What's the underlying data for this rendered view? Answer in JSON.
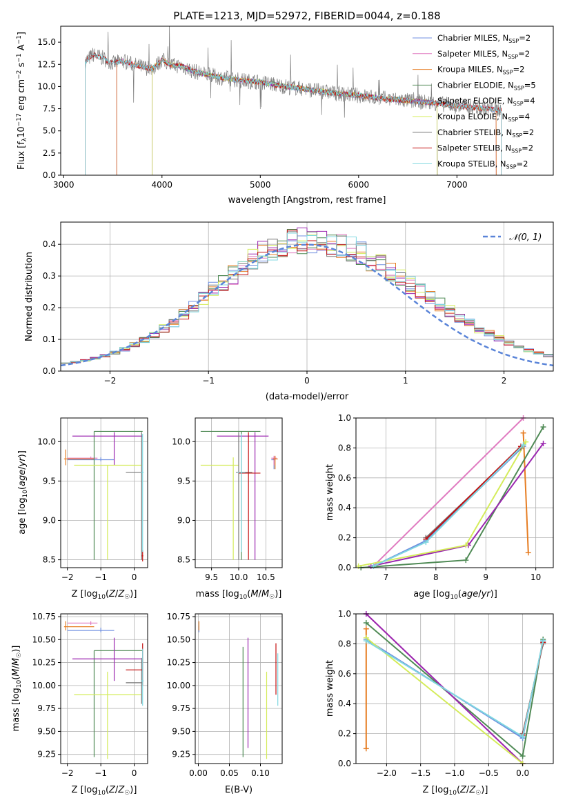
{
  "title": "PLATE=1213, MJD=52972, FIBERID=0044, z=0.188",
  "colors": {
    "chabrier_miles": "#6f8fe0",
    "salpeter_miles": "#e07ac0",
    "kroupa_miles": "#e67d22",
    "chabrier_elodie": "#4f8a55",
    "salpeter_elodie": "#9b27b0",
    "kroupa_elodie": "#d4ec5a",
    "chabrier_stelib": "#777777",
    "salpeter_stelib": "#c41212",
    "kroupa_stelib": "#7fd7e0",
    "normal_curve": "#5a84d8"
  },
  "chart_data": [
    {
      "id": "spectrum",
      "type": "line",
      "xlabel": "wavelength [Angstrom, rest frame]",
      "ylabel": "Flux [f",
      "ylabel_full": "Flux [fλ10⁻¹⁷ erg cm⁻² s⁻¹ A⁻¹]",
      "xlim": [
        2970,
        7980
      ],
      "ylim": [
        0,
        16.8
      ],
      "x_ticks": [
        "3000",
        "4000",
        "5000",
        "6000",
        "7000"
      ],
      "y_ticks": [
        "0.0",
        "2.5",
        "5.0",
        "7.5",
        "10.0",
        "12.5",
        "15.0"
      ],
      "grid": false,
      "legend": "top-right",
      "legend_entries": [
        {
          "label": "Chabrier MILES, N",
          "sub": "SSP",
          "tail": "=2",
          "color_key": "chabrier_miles"
        },
        {
          "label": "Salpeter MILES, N",
          "sub": "SSP",
          "tail": "=2",
          "color_key": "salpeter_miles"
        },
        {
          "label": "Kroupa MILES, N",
          "sub": "SSP",
          "tail": "=2",
          "color_key": "kroupa_miles"
        },
        {
          "label": "Chabrier ELODIE, N",
          "sub": "SSP",
          "tail": "=5",
          "color_key": "chabrier_elodie"
        },
        {
          "label": "Salpeter ELODIE, N",
          "sub": "SSP",
          "tail": "=4",
          "color_key": "salpeter_elodie"
        },
        {
          "label": "Kroupa ELODIE, N",
          "sub": "SSP",
          "tail": "=4",
          "color_key": "kroupa_elodie"
        },
        {
          "label": "Chabrier STELIB, N",
          "sub": "SSP",
          "tail": "=2",
          "color_key": "chabrier_stelib"
        },
        {
          "label": "Salpeter STELIB, N",
          "sub": "SSP",
          "tail": "=2",
          "color_key": "salpeter_stelib"
        },
        {
          "label": "Kroupa STELIB, N",
          "sub": "SSP",
          "tail": "=2",
          "color_key": "kroupa_stelib"
        }
      ],
      "data_continuum": {
        "x": [
          3220,
          3300,
          3400,
          3500,
          3600,
          3700,
          3800,
          3900,
          4000,
          4100,
          4200,
          4300,
          4400,
          4600,
          4800,
          5000,
          5200,
          5400,
          5600,
          5800,
          6000,
          6200,
          6400,
          6600,
          6800,
          7000,
          7200,
          7400
        ],
        "y": [
          12.8,
          13.6,
          13.2,
          12.6,
          12.9,
          12.5,
          12.2,
          12.0,
          13.0,
          12.4,
          12.3,
          11.8,
          11.5,
          11.0,
          10.7,
          10.5,
          10.1,
          9.8,
          9.5,
          9.2,
          9.0,
          8.7,
          8.5,
          8.3,
          8.1,
          7.8,
          7.6,
          7.4
        ]
      }
    },
    {
      "id": "residual-hist",
      "type": "line",
      "xlabel": "(data-model)/error",
      "ylabel": "Normed distribution",
      "xlim": [
        -2.5,
        2.5
      ],
      "ylim": [
        0,
        0.47
      ],
      "x_ticks": [
        "−2",
        "−1",
        "0",
        "1",
        "2"
      ],
      "y_ticks": [
        "0.0",
        "0.1",
        "0.2",
        "0.3",
        "0.4"
      ],
      "grid": true,
      "legend": "top-right",
      "normal_label": "𝒩(0, 1)",
      "normal_curve": {
        "mean": 0,
        "sigma": 1
      }
    },
    {
      "id": "age-vs-Z",
      "type": "scatter",
      "xlabel": "Z [log",
      "xlabel_full": "Z [log10(Z/Z☉)]",
      "ylabel": "age  [log",
      "ylabel_full": "age [log10(age/yr)]",
      "xlim": [
        -2.2,
        0.4
      ],
      "ylim": [
        8.4,
        10.3
      ],
      "x_ticks": [
        "−2",
        "−1",
        "0"
      ],
      "y_ticks": [
        "8.5",
        "9.0",
        "9.5",
        "10.0"
      ],
      "grid": true
    },
    {
      "id": "age-vs-mass",
      "type": "scatter",
      "xlabel": "mass [log",
      "xlabel_full": "mass [log10(M/M☉)]",
      "xlim": [
        9.2,
        10.8
      ],
      "ylim": [
        8.4,
        10.3
      ],
      "x_ticks": [
        "9.5",
        "10.0",
        "10.5"
      ],
      "y_ticks": [
        "8.5",
        "9.0",
        "9.5",
        "10.0"
      ],
      "grid": true
    },
    {
      "id": "weight-vs-age",
      "type": "line",
      "xlabel": "age  [log",
      "xlabel_full": "age [log10(age/yr)]",
      "ylabel": "mass weight",
      "xlim": [
        6.4,
        10.35
      ],
      "ylim": [
        0,
        1.0
      ],
      "x_ticks": [
        "7",
        "8",
        "9",
        "10"
      ],
      "y_ticks": [
        "0.0",
        "0.2",
        "0.4",
        "0.6",
        "0.8",
        "1.0"
      ],
      "grid": true,
      "series": [
        {
          "color_key": "chabrier_miles",
          "x": [
            6.75,
            7.8,
            9.75
          ],
          "y": [
            0.01,
            0.18,
            0.81
          ]
        },
        {
          "color_key": "salpeter_miles",
          "x": [
            6.75,
            9.75
          ],
          "y": [
            0.01,
            1.0
          ]
        },
        {
          "color_key": "kroupa_miles",
          "x": [
            9.75,
            9.85
          ],
          "y": [
            0.9,
            0.1
          ]
        },
        {
          "color_key": "chabrier_elodie",
          "x": [
            6.5,
            8.6,
            10.15
          ],
          "y": [
            0.0,
            0.05,
            0.94
          ]
        },
        {
          "color_key": "salpeter_elodie",
          "x": [
            6.7,
            8.65,
            10.15
          ],
          "y": [
            0.01,
            0.15,
            0.83
          ]
        },
        {
          "color_key": "kroupa_elodie",
          "x": [
            6.45,
            8.6,
            9.8
          ],
          "y": [
            0.01,
            0.15,
            0.84
          ]
        },
        {
          "color_key": "chabrier_stelib",
          "x": [
            7.8,
            9.7
          ],
          "y": [
            0.2,
            0.8
          ]
        },
        {
          "color_key": "salpeter_stelib",
          "x": [
            7.8,
            9.7
          ],
          "y": [
            0.19,
            0.81
          ]
        },
        {
          "color_key": "kroupa_stelib",
          "x": [
            6.75,
            7.8,
            9.75
          ],
          "y": [
            0.01,
            0.17,
            0.82
          ]
        }
      ]
    },
    {
      "id": "mass-vs-Z",
      "type": "scatter",
      "xlabel": "Z [log",
      "xlabel_full": "Z [log10(Z/Z☉)]",
      "ylabel": "mass [log",
      "ylabel_full": "mass [log10(M/M☉)]",
      "xlim": [
        -2.2,
        0.4
      ],
      "ylim": [
        9.15,
        10.78
      ],
      "x_ticks": [
        "−2",
        "−1",
        "0"
      ],
      "y_ticks": [
        "9.25",
        "9.50",
        "9.75",
        "10.00",
        "10.25",
        "10.50",
        "10.75"
      ],
      "grid": true
    },
    {
      "id": "mass-vs-ebv",
      "type": "scatter",
      "xlabel": "E(B-V)",
      "xlim": [
        -0.005,
        0.135
      ],
      "ylim": [
        9.15,
        10.78
      ],
      "x_ticks": [
        "0.00",
        "0.05",
        "0.10"
      ],
      "y_ticks": [
        "9.25",
        "9.50",
        "9.75",
        "10.00",
        "10.25",
        "10.50",
        "10.75"
      ],
      "grid": true
    },
    {
      "id": "weight-vs-Z",
      "type": "line",
      "xlabel": "Z [log",
      "xlabel_full": "Z [log10(Z/Z☉)]",
      "ylabel": "mass weight",
      "xlim": [
        -2.45,
        0.45
      ],
      "ylim": [
        0,
        1.0
      ],
      "x_ticks": [
        "−2.0",
        "−1.5",
        "−1.0",
        "−0.5",
        "0.0"
      ],
      "y_ticks": [
        "0.0",
        "0.2",
        "0.4",
        "0.6",
        "0.8",
        "1.0"
      ],
      "grid": true,
      "series": [
        {
          "color_key": "chabrier_miles",
          "x": [
            -2.3,
            0.0,
            0.3
          ],
          "y": [
            0.83,
            0.17,
            0.82
          ]
        },
        {
          "color_key": "salpeter_miles",
          "x": [
            -2.3,
            0.0
          ],
          "y": [
            1.0,
            0.0
          ]
        },
        {
          "color_key": "kroupa_miles",
          "x": [
            -2.3,
            -2.3
          ],
          "y": [
            0.9,
            0.1
          ]
        },
        {
          "color_key": "chabrier_elodie",
          "x": [
            -2.3,
            0.0,
            0.3
          ],
          "y": [
            0.94,
            0.05,
            0.83
          ]
        },
        {
          "color_key": "salpeter_elodie",
          "x": [
            -2.3,
            0.0
          ],
          "y": [
            1.0,
            0.0
          ]
        },
        {
          "color_key": "kroupa_elodie",
          "x": [
            -2.3,
            0.0
          ],
          "y": [
            0.84,
            0.0
          ]
        },
        {
          "color_key": "chabrier_stelib",
          "x": [
            0.0,
            0.3
          ],
          "y": [
            0.2,
            0.8
          ]
        },
        {
          "color_key": "salpeter_stelib",
          "x": [
            0.0,
            0.3
          ],
          "y": [
            0.19,
            0.81
          ]
        },
        {
          "color_key": "kroupa_stelib",
          "x": [
            -2.3,
            0.0,
            0.3
          ],
          "y": [
            0.82,
            0.18,
            0.82
          ]
        }
      ]
    }
  ],
  "errorbars": {
    "age_vs_Z": [
      {
        "c": "chabrier_miles",
        "x": -1.0,
        "xe": [
          -2.0,
          -0.6
        ],
        "y": 9.77,
        "ye": [
          9.75,
          9.8
        ]
      },
      {
        "c": "salpeter_miles",
        "x": -1.3,
        "xe": [
          -2.0,
          -1.1
        ],
        "y": 9.79,
        "ye": [
          9.77,
          9.81
        ]
      },
      {
        "c": "kroupa_miles",
        "x": -2.05,
        "xe": [
          -2.1,
          -1.2
        ],
        "y": 9.78,
        "ye": [
          9.7,
          9.9
        ]
      },
      {
        "c": "chabrier_elodie",
        "x": -1.2,
        "xe": [
          -1.2,
          0.25
        ],
        "y": 10.13,
        "ye": [
          8.5,
          10.13
        ]
      },
      {
        "c": "salpeter_elodie",
        "x": -0.6,
        "xe": [
          -1.85,
          0.25
        ],
        "y": 10.07,
        "ye": [
          9.7,
          10.12
        ]
      },
      {
        "c": "kroupa_elodie",
        "x": -0.8,
        "xe": [
          -1.8,
          0.2
        ],
        "y": 9.7,
        "ye": [
          8.5,
          9.7
        ]
      },
      {
        "c": "chabrier_stelib",
        "x": 0.22,
        "xe": [
          -0.25,
          0.25
        ],
        "y": 9.61,
        "ye": [
          8.5,
          10.12
        ]
      },
      {
        "c": "salpeter_stelib",
        "x": 0.25,
        "xe": [
          0.22,
          0.27
        ],
        "y": 8.55,
        "ye": [
          8.48,
          8.62
        ]
      },
      {
        "c": "kroupa_stelib",
        "x": 0.25,
        "xe": [
          0.2,
          0.28
        ],
        "y": 9.61,
        "ye": [
          8.6,
          10.1
        ]
      }
    ],
    "age_vs_mass": [
      {
        "c": "chabrier_miles",
        "x": 10.65,
        "xe": [
          10.6,
          10.67
        ],
        "y": 9.77,
        "ye": [
          9.65,
          9.8
        ]
      },
      {
        "c": "salpeter_miles",
        "x": 10.65,
        "xe": [
          10.6,
          10.7
        ],
        "y": 9.79,
        "ye": [
          9.7,
          9.82
        ]
      },
      {
        "c": "kroupa_miles",
        "x": 10.67,
        "xe": [
          10.63,
          10.72
        ],
        "y": 9.78,
        "ye": [
          9.65,
          9.82
        ]
      },
      {
        "c": "chabrier_elodie",
        "x": 10.05,
        "xe": [
          9.3,
          10.4
        ],
        "y": 10.13,
        "ye": [
          8.5,
          10.13
        ]
      },
      {
        "c": "salpeter_elodie",
        "x": 10.3,
        "xe": [
          9.6,
          10.55
        ],
        "y": 10.07,
        "ye": [
          8.5,
          10.12
        ]
      },
      {
        "c": "kroupa_elodie",
        "x": 9.9,
        "xe": [
          9.3,
          10.0
        ],
        "y": 9.7,
        "ye": [
          8.5,
          9.8
        ]
      },
      {
        "c": "chabrier_stelib",
        "x": 10.0,
        "xe": [
          9.95,
          10.25
        ],
        "y": 9.61,
        "ye": [
          8.5,
          10.12
        ]
      },
      {
        "c": "salpeter_stelib",
        "x": 10.18,
        "xe": [
          10.0,
          10.4
        ],
        "y": 9.6,
        "ye": [
          8.5,
          10.12
        ]
      },
      {
        "c": "kroupa_stelib",
        "x": 10.05,
        "xe": [
          9.98,
          10.12
        ],
        "y": 9.61,
        "ye": [
          8.6,
          10.1
        ]
      }
    ],
    "mass_vs_Z": [
      {
        "c": "chabrier_miles",
        "x": -1.0,
        "xe": [
          -2.0,
          -0.6
        ],
        "y": 10.6,
        "ye": [
          10.58,
          10.63
        ]
      },
      {
        "c": "salpeter_miles",
        "x": -1.3,
        "xe": [
          -2.0,
          -1.1
        ],
        "y": 10.68,
        "ye": [
          10.66,
          10.7
        ]
      },
      {
        "c": "kroupa_miles",
        "x": -2.05,
        "xe": [
          -2.1,
          -1.2
        ],
        "y": 10.64,
        "ye": [
          10.6,
          10.7
        ]
      },
      {
        "c": "chabrier_elodie",
        "x": -1.2,
        "xe": [
          -1.2,
          0.25
        ],
        "y": 10.38,
        "ye": [
          9.22,
          10.38
        ]
      },
      {
        "c": "salpeter_elodie",
        "x": -0.6,
        "xe": [
          -1.85,
          0.2
        ],
        "y": 10.29,
        "ye": [
          10.05,
          10.52
        ]
      },
      {
        "c": "kroupa_elodie",
        "x": -0.8,
        "xe": [
          -1.8,
          0.2
        ],
        "y": 9.9,
        "ye": [
          9.2,
          10.15
        ]
      },
      {
        "c": "chabrier_stelib",
        "x": 0.22,
        "xe": [
          -0.25,
          0.25
        ],
        "y": 10.03,
        "ye": [
          9.8,
          10.3
        ]
      },
      {
        "c": "salpeter_stelib",
        "x": 0.25,
        "xe": [
          -0.25,
          0.25
        ],
        "y": 10.17,
        "ye": [
          10.0,
          10.46
        ]
      },
      {
        "c": "kroupa_stelib",
        "x": 0.25,
        "xe": [
          0.2,
          0.28
        ],
        "y": 10.05,
        "ye": [
          9.78,
          10.4
        ]
      }
    ],
    "mass_vs_ebv": [
      {
        "c": "chabrier_miles",
        "x": 0.001,
        "y": 10.62,
        "ye": [
          10.58,
          10.65
        ]
      },
      {
        "c": "kroupa_miles",
        "x": 0.001,
        "y": 10.66,
        "ye": [
          10.6,
          10.7
        ]
      },
      {
        "c": "chabrier_elodie",
        "x": 0.072,
        "y": 10.0,
        "ye": [
          9.22,
          10.42
        ]
      },
      {
        "c": "salpeter_elodie",
        "x": 0.08,
        "y": 10.0,
        "ye": [
          9.32,
          10.52
        ]
      },
      {
        "c": "kroupa_elodie",
        "x": 0.11,
        "y": 9.8,
        "ye": [
          9.2,
          10.15
        ]
      },
      {
        "c": "salpeter_stelib",
        "x": 0.125,
        "y": 10.2,
        "ye": [
          9.9,
          10.46
        ]
      },
      {
        "c": "kroupa_stelib",
        "x": 0.128,
        "y": 10.0,
        "ye": [
          9.78,
          10.35
        ]
      }
    ]
  }
}
